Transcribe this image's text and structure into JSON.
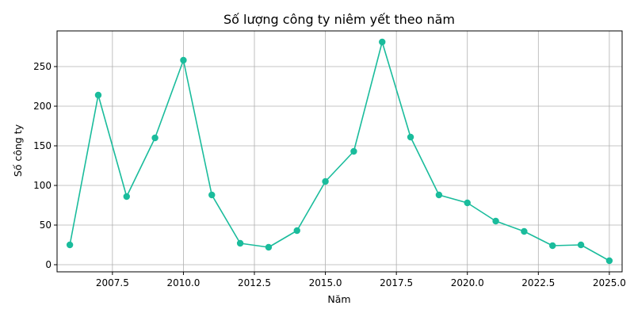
{
  "chart_data": {
    "type": "line",
    "title": "Số lượng công ty niêm yết theo năm",
    "xlabel": "Năm",
    "ylabel": "Số công ty",
    "xlim": [
      2005.55,
      2025.45
    ],
    "ylim": [
      -9,
      295
    ],
    "x_ticks": [
      2007.5,
      2010.0,
      2012.5,
      2015.0,
      2017.5,
      2020.0,
      2022.5,
      2025.0
    ],
    "x_tick_labels": [
      "2007.5",
      "2010.0",
      "2012.5",
      "2015.0",
      "2017.5",
      "2020.0",
      "2022.5",
      "2025.0"
    ],
    "y_ticks": [
      0,
      50,
      100,
      150,
      200,
      250
    ],
    "y_tick_labels": [
      "0",
      "50",
      "100",
      "150",
      "200",
      "250"
    ],
    "grid": true,
    "series": [
      {
        "color": "#1abc9c",
        "marker": "circle",
        "x": [
          2006,
          2007,
          2008,
          2009,
          2010,
          2011,
          2012,
          2013,
          2014,
          2015,
          2016,
          2017,
          2018,
          2019,
          2020,
          2021,
          2022,
          2023,
          2024,
          2025
        ],
        "y": [
          25,
          214,
          86,
          160,
          258,
          88,
          27,
          22,
          43,
          105,
          143,
          281,
          161,
          88,
          78,
          55,
          42,
          24,
          25,
          5
        ]
      }
    ]
  }
}
